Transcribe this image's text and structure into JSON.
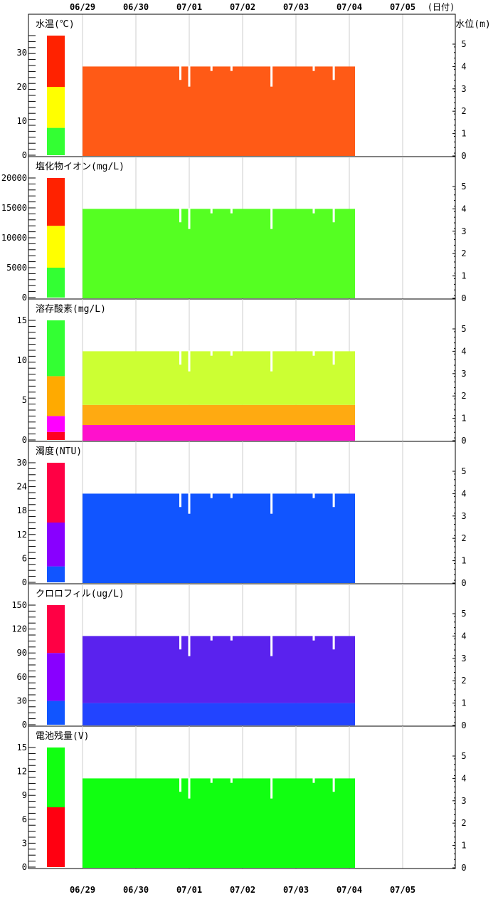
{
  "header": {
    "dates": [
      "06/29",
      "06/30",
      "07/01",
      "07/02",
      "07/03",
      "07/04",
      "07/05"
    ],
    "unit_right": "(日付)"
  },
  "right_axis": {
    "title": "水位(m)",
    "ticks": [
      "0",
      "1",
      "2",
      "3",
      "4",
      "5"
    ]
  },
  "chart_data": {
    "type": "heatmap",
    "x_dates": [
      "06/29",
      "06/30",
      "07/01",
      "07/02",
      "07/03",
      "07/04",
      "07/05"
    ],
    "water_level_max_m": 4.0,
    "water_level_dips": [
      {
        "date": "06/30 ~20:00",
        "depth_m": 0.6
      },
      {
        "date": "07/01 ~00:00",
        "depth_m": 0.9
      },
      {
        "date": "07/01 ~10:00",
        "depth_m": 0.2
      },
      {
        "date": "07/01 ~19:00",
        "depth_m": 0.2
      },
      {
        "date": "07/02 ~13:00",
        "depth_m": 0.9
      },
      {
        "date": "07/03 ~08:00",
        "depth_m": 0.2
      },
      {
        "date": "07/03 ~17:00",
        "depth_m": 0.6
      }
    ],
    "panels": [
      {
        "title": "水温(℃)",
        "left_ticks": [
          "0",
          "10",
          "20",
          "30"
        ],
        "scale_max": 35,
        "colorbar": [
          {
            "from": 0,
            "to": 8,
            "color": "#33ff33"
          },
          {
            "from": 8,
            "to": 20,
            "color": "#ffff00"
          },
          {
            "from": 20,
            "to": 35,
            "color": "#ff2200"
          }
        ],
        "fill": [
          {
            "from_level": 0,
            "to_level": 4.0,
            "color": "#ff5a16"
          }
        ]
      },
      {
        "title": "塩化物イオン(mg/L)",
        "left_ticks": [
          "0",
          "5000",
          "10000",
          "15000",
          "20000"
        ],
        "scale_max": 20000,
        "colorbar": [
          {
            "from": 0,
            "to": 5000,
            "color": "#33ff33"
          },
          {
            "from": 5000,
            "to": 12000,
            "color": "#ffff00"
          },
          {
            "from": 12000,
            "to": 20000,
            "color": "#ff2200"
          }
        ],
        "fill": [
          {
            "from_level": 0,
            "to_level": 4.0,
            "color": "#55ff22"
          }
        ]
      },
      {
        "title": "溶存酸素(mg/L)",
        "left_ticks": [
          "0",
          "5",
          "10",
          "15"
        ],
        "scale_max": 15,
        "colorbar": [
          {
            "from": 0,
            "to": 1,
            "color": "#ff0022"
          },
          {
            "from": 1,
            "to": 3,
            "color": "#ff00ff"
          },
          {
            "from": 3,
            "to": 8,
            "color": "#ffaa00"
          },
          {
            "from": 8,
            "to": 15,
            "color": "#33ff33"
          }
        ],
        "fill": [
          {
            "from_level": 0,
            "to_level": 0.7,
            "color": "#ff11cc"
          },
          {
            "from_level": 0.7,
            "to_level": 1.6,
            "color": "#ffaa11"
          },
          {
            "from_level": 1.6,
            "to_level": 4.0,
            "color": "#ccff33"
          }
        ]
      },
      {
        "title": "濁度(NTU)",
        "left_ticks": [
          "0",
          "6",
          "12",
          "18",
          "24",
          "30"
        ],
        "scale_max": 30,
        "colorbar": [
          {
            "from": 0,
            "to": 4,
            "color": "#1155ff"
          },
          {
            "from": 4,
            "to": 15,
            "color": "#8800ff"
          },
          {
            "from": 15,
            "to": 30,
            "color": "#ff0044"
          }
        ],
        "fill": [
          {
            "from_level": 0,
            "to_level": 4.0,
            "color": "#1155ff"
          }
        ]
      },
      {
        "title": "クロロフィル(ug/L)",
        "left_ticks": [
          "0",
          "30",
          "60",
          "90",
          "120",
          "150"
        ],
        "scale_max": 150,
        "colorbar": [
          {
            "from": 0,
            "to": 30,
            "color": "#1155ff"
          },
          {
            "from": 30,
            "to": 90,
            "color": "#8800ff"
          },
          {
            "from": 90,
            "to": 150,
            "color": "#ff0044"
          }
        ],
        "fill": [
          {
            "from_level": 0,
            "to_level": 1.0,
            "color": "#2244ff"
          },
          {
            "from_level": 1.0,
            "to_level": 4.0,
            "color": "#5a22ee"
          }
        ]
      },
      {
        "title": "電池残量(V)",
        "left_ticks": [
          "0",
          "3",
          "6",
          "9",
          "12",
          "15"
        ],
        "scale_max": 15,
        "colorbar": [
          {
            "from": 0,
            "to": 7.5,
            "color": "#ff0011"
          },
          {
            "from": 7.5,
            "to": 15,
            "color": "#11ff11"
          }
        ],
        "fill": [
          {
            "from_level": 0,
            "to_level": 4.0,
            "color": "#11ff11"
          }
        ]
      }
    ]
  }
}
